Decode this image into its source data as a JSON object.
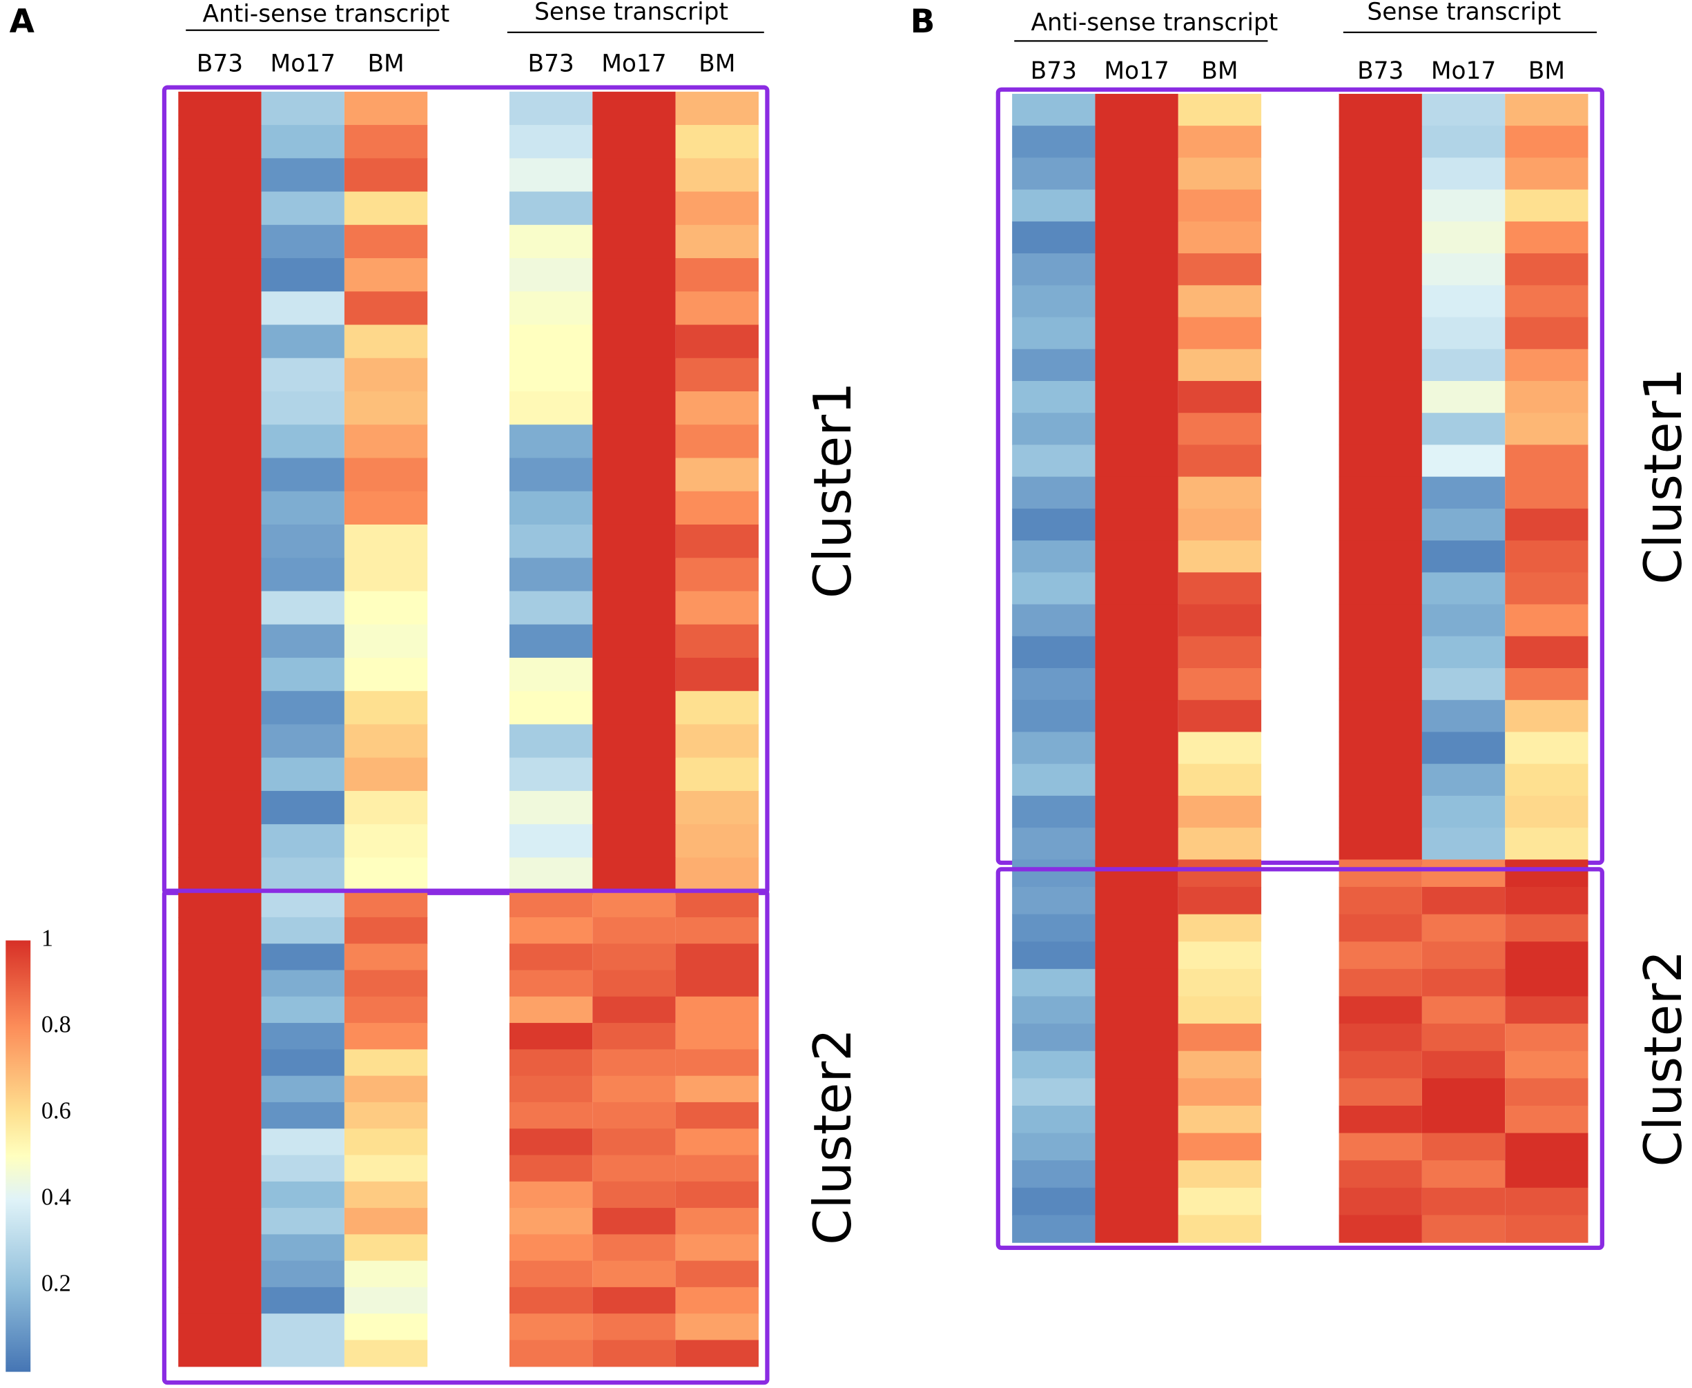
{
  "chart_data": [
    {
      "type": "heatmap",
      "panel": "A",
      "groups": [
        {
          "label": "Anti-sense transcript",
          "columns": [
            "B73",
            "Mo17",
            "BM"
          ]
        },
        {
          "label": "Sense transcript",
          "columns": [
            "B73",
            "Mo17",
            "BM"
          ]
        }
      ],
      "colorscale": [
        [
          0,
          "#4575b4"
        ],
        [
          0.2,
          "#91bfdb"
        ],
        [
          0.4,
          "#e0f3f8"
        ],
        [
          0.5,
          "#ffffbf"
        ],
        [
          0.6,
          "#fee090"
        ],
        [
          0.8,
          "#fc8d59"
        ],
        [
          1,
          "#d73027"
        ]
      ],
      "colorbar": {
        "clim": [
          0,
          1
        ],
        "ticks": [
          0.2,
          0.4,
          0.6,
          0.8,
          1
        ]
      },
      "box_color": "#8a2be2",
      "clusters": [
        {
          "name": "Cluster1",
          "rows": [
            [
              1,
              0.25,
              0.75,
              0.3,
              1,
              0.7
            ],
            [
              1,
              0.2,
              0.85,
              0.35,
              1,
              0.6
            ],
            [
              1,
              0.08,
              0.9,
              0.42,
              1,
              0.65
            ],
            [
              1,
              0.22,
              0.6,
              0.25,
              1,
              0.75
            ],
            [
              1,
              0.1,
              0.85,
              0.48,
              1,
              0.7
            ],
            [
              1,
              0.05,
              0.75,
              0.45,
              1,
              0.85
            ],
            [
              1,
              0.35,
              0.9,
              0.48,
              1,
              0.78
            ],
            [
              1,
              0.15,
              0.62,
              0.5,
              1,
              0.95
            ],
            [
              1,
              0.3,
              0.7,
              0.5,
              1,
              0.88
            ],
            [
              1,
              0.28,
              0.68,
              0.52,
              1,
              0.75
            ],
            [
              1,
              0.2,
              0.75,
              0.15,
              1,
              0.82
            ],
            [
              1,
              0.08,
              0.82,
              0.1,
              1,
              0.7
            ],
            [
              1,
              0.15,
              0.8,
              0.18,
              1,
              0.8
            ],
            [
              1,
              0.12,
              0.55,
              0.22,
              1,
              0.92
            ],
            [
              1,
              0.1,
              0.55,
              0.12,
              1,
              0.85
            ],
            [
              1,
              0.32,
              0.5,
              0.25,
              1,
              0.78
            ],
            [
              1,
              0.12,
              0.48,
              0.08,
              1,
              0.9
            ],
            [
              1,
              0.2,
              0.5,
              0.48,
              1,
              0.95
            ],
            [
              1,
              0.08,
              0.6,
              0.5,
              1,
              0.6
            ],
            [
              1,
              0.12,
              0.65,
              0.25,
              1,
              0.65
            ],
            [
              1,
              0.2,
              0.7,
              0.32,
              1,
              0.6
            ],
            [
              1,
              0.05,
              0.55,
              0.45,
              1,
              0.68
            ],
            [
              1,
              0.22,
              0.52,
              0.38,
              1,
              0.7
            ],
            [
              1,
              0.25,
              0.5,
              0.45,
              1,
              0.72
            ]
          ]
        },
        {
          "name": "Cluster2",
          "rows": [
            [
              1,
              0.3,
              0.85,
              0.85,
              0.82,
              0.9
            ],
            [
              1,
              0.25,
              0.9,
              0.8,
              0.85,
              0.85
            ],
            [
              1,
              0.05,
              0.82,
              0.9,
              0.88,
              0.95
            ],
            [
              1,
              0.15,
              0.88,
              0.85,
              0.9,
              0.95
            ],
            [
              1,
              0.2,
              0.85,
              0.75,
              0.95,
              0.8
            ],
            [
              1,
              0.08,
              0.8,
              0.98,
              0.9,
              0.8
            ],
            [
              1,
              0.05,
              0.6,
              0.9,
              0.85,
              0.85
            ],
            [
              1,
              0.15,
              0.7,
              0.88,
              0.82,
              0.75
            ],
            [
              1,
              0.08,
              0.65,
              0.85,
              0.85,
              0.9
            ],
            [
              1,
              0.35,
              0.6,
              0.95,
              0.88,
              0.8
            ],
            [
              1,
              0.3,
              0.55,
              0.9,
              0.85,
              0.85
            ],
            [
              1,
              0.2,
              0.65,
              0.78,
              0.88,
              0.9
            ],
            [
              1,
              0.25,
              0.72,
              0.75,
              0.95,
              0.82
            ],
            [
              1,
              0.15,
              0.6,
              0.8,
              0.85,
              0.78
            ],
            [
              1,
              0.12,
              0.48,
              0.85,
              0.82,
              0.88
            ],
            [
              1,
              0.05,
              0.45,
              0.9,
              0.95,
              0.8
            ],
            [
              1,
              0.3,
              0.5,
              0.82,
              0.85,
              0.75
            ],
            [
              1,
              0.3,
              0.58,
              0.85,
              0.9,
              0.95
            ]
          ]
        }
      ]
    },
    {
      "type": "heatmap",
      "panel": "B",
      "groups": [
        {
          "label": "Anti-sense transcript",
          "columns": [
            "B73",
            "Mo17",
            "BM"
          ]
        },
        {
          "label": "Sense transcript",
          "columns": [
            "B73",
            "Mo17",
            "BM"
          ]
        }
      ],
      "colorscale": [
        [
          0,
          "#4575b4"
        ],
        [
          0.2,
          "#91bfdb"
        ],
        [
          0.4,
          "#e0f3f8"
        ],
        [
          0.5,
          "#ffffbf"
        ],
        [
          0.6,
          "#fee090"
        ],
        [
          0.8,
          "#fc8d59"
        ],
        [
          1,
          "#d73027"
        ]
      ],
      "box_color": "#8a2be2",
      "clusters": [
        {
          "name": "Cluster1",
          "rows": [
            [
              0.2,
              1,
              0.6,
              1,
              0.3,
              0.7
            ],
            [
              0.08,
              1,
              0.75,
              1,
              0.28,
              0.8
            ],
            [
              0.12,
              1,
              0.7,
              1,
              0.35,
              0.75
            ],
            [
              0.2,
              1,
              0.78,
              1,
              0.42,
              0.6
            ],
            [
              0.05,
              1,
              0.75,
              1,
              0.45,
              0.8
            ],
            [
              0.12,
              1,
              0.88,
              1,
              0.42,
              0.9
            ],
            [
              0.15,
              1,
              0.7,
              1,
              0.38,
              0.85
            ],
            [
              0.18,
              1,
              0.8,
              1,
              0.35,
              0.9
            ],
            [
              0.1,
              1,
              0.68,
              1,
              0.3,
              0.78
            ],
            [
              0.2,
              1,
              0.95,
              1,
              0.45,
              0.72
            ],
            [
              0.15,
              1,
              0.85,
              1,
              0.25,
              0.7
            ],
            [
              0.22,
              1,
              0.9,
              1,
              0.4,
              0.85
            ],
            [
              0.12,
              1,
              0.7,
              1,
              0.1,
              0.85
            ],
            [
              0.05,
              1,
              0.72,
              1,
              0.15,
              0.95
            ],
            [
              0.15,
              1,
              0.65,
              1,
              0.05,
              0.9
            ],
            [
              0.2,
              1,
              0.92,
              1,
              0.18,
              0.88
            ],
            [
              0.12,
              1,
              0.95,
              1,
              0.15,
              0.8
            ],
            [
              0.05,
              1,
              0.9,
              1,
              0.2,
              0.95
            ],
            [
              0.1,
              1,
              0.85,
              1,
              0.25,
              0.85
            ],
            [
              0.08,
              1,
              0.95,
              1,
              0.12,
              0.65
            ],
            [
              0.15,
              1,
              0.55,
              1,
              0.05,
              0.55
            ],
            [
              0.2,
              1,
              0.6,
              1,
              0.15,
              0.6
            ],
            [
              0.08,
              1,
              0.72,
              1,
              0.2,
              0.62
            ],
            [
              0.12,
              1,
              0.65,
              1,
              0.22,
              0.58
            ]
          ]
        },
        {
          "name": "Cluster2",
          "rows": [
            [
              0.1,
              1,
              0.92,
              0.85,
              0.82,
              1
            ],
            [
              0.12,
              1,
              0.95,
              0.9,
              0.95,
              0.98
            ],
            [
              0.08,
              1,
              0.62,
              0.92,
              0.85,
              0.9
            ],
            [
              0.05,
              1,
              0.55,
              0.85,
              0.88,
              1
            ],
            [
              0.2,
              1,
              0.58,
              0.9,
              0.92,
              1
            ],
            [
              0.15,
              1,
              0.6,
              0.98,
              0.85,
              0.95
            ],
            [
              0.12,
              1,
              0.82,
              0.95,
              0.9,
              0.85
            ],
            [
              0.2,
              1,
              0.7,
              0.92,
              0.95,
              0.82
            ],
            [
              0.25,
              1,
              0.75,
              0.88,
              1,
              0.88
            ],
            [
              0.18,
              1,
              0.65,
              0.98,
              1,
              0.85
            ],
            [
              0.15,
              1,
              0.8,
              0.85,
              0.9,
              1
            ],
            [
              0.1,
              1,
              0.62,
              0.92,
              0.85,
              1
            ],
            [
              0.05,
              1,
              0.55,
              0.95,
              0.92,
              0.92
            ],
            [
              0.08,
              1,
              0.6,
              0.98,
              0.88,
              0.9
            ]
          ]
        }
      ]
    }
  ]
}
